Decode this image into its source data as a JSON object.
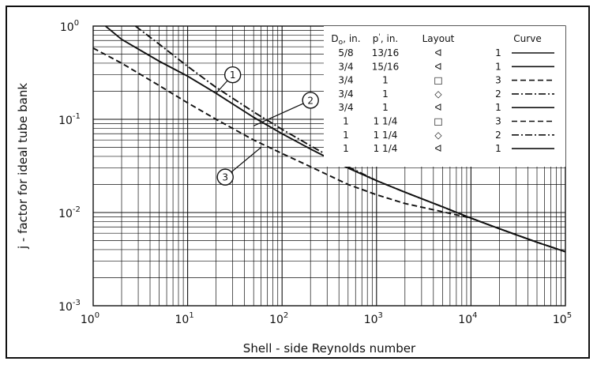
{
  "chart_data": {
    "type": "line",
    "title": "",
    "xlabel": "Shell - side Reynolds number",
    "ylabel": "j - factor for ideal tube bank",
    "x_scale": "log",
    "y_scale": "log",
    "xlim": [
      1,
      100000
    ],
    "ylim": [
      0.001,
      1
    ],
    "grid": true,
    "x_ticks": [
      {
        "base": "10",
        "exp": "0"
      },
      {
        "base": "10",
        "exp": "1"
      },
      {
        "base": "10",
        "exp": "2"
      },
      {
        "base": "10",
        "exp": "3"
      },
      {
        "base": "10",
        "exp": "4"
      },
      {
        "base": "10",
        "exp": "5"
      }
    ],
    "y_ticks": [
      {
        "base": "10",
        "exp": "0"
      },
      {
        "base": "10",
        "exp": "-1"
      },
      {
        "base": "10",
        "exp": "-2"
      },
      {
        "base": "10",
        "exp": "-3"
      }
    ],
    "series": [
      {
        "name": "1",
        "style": "solid",
        "x": [
          1.35,
          2,
          5,
          10,
          20,
          50,
          100,
          200,
          500,
          1000,
          2000,
          5000,
          10000,
          20000,
          50000,
          100000
        ],
        "y": [
          1.0,
          0.72,
          0.42,
          0.29,
          0.19,
          0.105,
          0.07,
          0.048,
          0.03,
          0.022,
          0.0165,
          0.0115,
          0.0087,
          0.0067,
          0.0048,
          0.0038
        ]
      },
      {
        "name": "2",
        "style": "dash-dot",
        "x": [
          2.8,
          5,
          10,
          20,
          50,
          100,
          200,
          500,
          1000,
          2000,
          5000,
          10000,
          20000,
          50000,
          100000
        ],
        "y": [
          1.0,
          0.64,
          0.37,
          0.22,
          0.12,
          0.078,
          0.052,
          0.031,
          0.022,
          0.0165,
          0.0115,
          0.0087,
          0.0067,
          0.0048,
          0.0038
        ]
      },
      {
        "name": "3",
        "style": "dashed",
        "x": [
          1,
          2,
          5,
          10,
          20,
          50,
          100,
          200,
          500,
          1000,
          2000,
          5000,
          10000,
          20000,
          50000,
          100000
        ],
        "y": [
          0.58,
          0.4,
          0.23,
          0.15,
          0.1,
          0.06,
          0.043,
          0.031,
          0.02,
          0.0155,
          0.0125,
          0.0102,
          0.0087,
          0.0067,
          0.0048,
          0.0038
        ]
      }
    ],
    "callouts": [
      {
        "label": "1",
        "x": 30,
        "y": 0.3,
        "tx": 20,
        "ty": 0.19
      },
      {
        "label": "2",
        "x": 200,
        "y": 0.16,
        "tx": 50,
        "ty": 0.085
      },
      {
        "label": "3",
        "x": 25,
        "y": 0.024,
        "tx": 60,
        "ty": 0.05
      }
    ],
    "legend": {
      "position": "top-right",
      "headers": {
        "do": "D",
        "do_sub": "o",
        "do_unit": ", in.",
        "pitch": "p",
        "pitch_mark": "'",
        "pitch_unit": ", in.",
        "layout": "Layout",
        "curve": "Curve"
      },
      "rows": [
        {
          "do": "5/8",
          "pitch": "13/16",
          "layout": "ᐊ",
          "curve": "1",
          "style": "solid"
        },
        {
          "do": "3/4",
          "pitch": "15/16",
          "layout": "ᐊ",
          "curve": "1",
          "style": "solid"
        },
        {
          "do": "3/4",
          "pitch": "1",
          "layout": "□",
          "curve": "3",
          "style": "dashed"
        },
        {
          "do": "3/4",
          "pitch": "1",
          "layout": "◇",
          "curve": "2",
          "style": "dash-dot"
        },
        {
          "do": "3/4",
          "pitch": "1",
          "layout": "ᐊ",
          "curve": "1",
          "style": "solid"
        },
        {
          "do": "1",
          "pitch": "1 1/4",
          "layout": "□",
          "curve": "3",
          "style": "dashed"
        },
        {
          "do": "1",
          "pitch": "1 1/4",
          "layout": "◇",
          "curve": "2",
          "style": "dash-dot"
        },
        {
          "do": "1",
          "pitch": "1 1/4",
          "layout": "ᐊ",
          "curve": "1",
          "style": "solid"
        }
      ]
    }
  }
}
